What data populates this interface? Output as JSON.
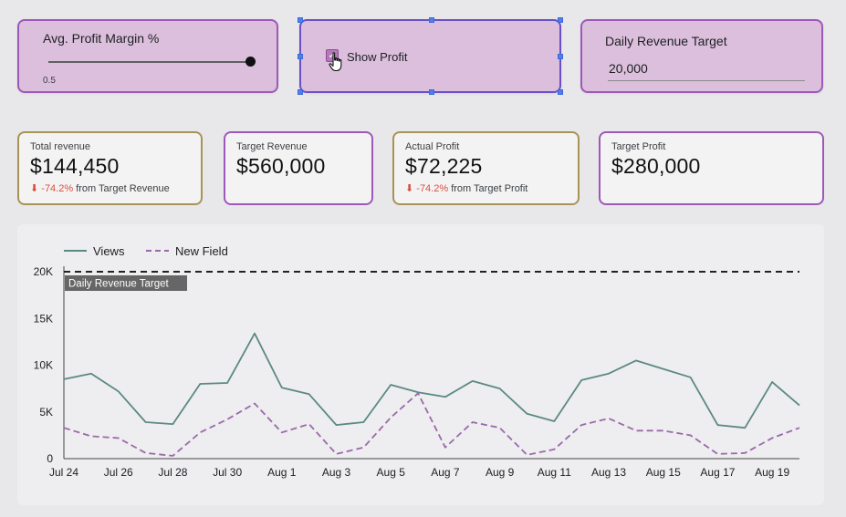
{
  "controls": {
    "slider": {
      "title": "Avg. Profit Margin %",
      "value": "0.5",
      "fraction": 0.5
    },
    "checkbox": {
      "label": "Show Profit",
      "checked": true
    },
    "target_input": {
      "title": "Daily Revenue Target",
      "value": "20,000"
    }
  },
  "kpis": {
    "total_revenue": {
      "label": "Total revenue",
      "value": "$144,450",
      "delta_arrow": "⬇",
      "delta_pct": "-74.2%",
      "delta_text": "from Target Revenue"
    },
    "target_revenue": {
      "label": "Target Revenue",
      "value": "$560,000"
    },
    "actual_profit": {
      "label": "Actual Profit",
      "value": "$72,225",
      "delta_arrow": "⬇",
      "delta_pct": "-74.2%",
      "delta_text": "from Target Profit"
    },
    "target_profit": {
      "label": "Target Profit",
      "value": "$280,000"
    }
  },
  "colors": {
    "views": "#5b8a80",
    "new_field": "#9a6aa8",
    "reference": "#222222",
    "ref_label_bg": "#666666",
    "axis": "#444444"
  },
  "chart_data": {
    "type": "line",
    "x": [
      "Jul 24",
      "Jul 25",
      "Jul 26",
      "Jul 27",
      "Jul 28",
      "Jul 29",
      "Jul 30",
      "Jul 31",
      "Aug 1",
      "Aug 2",
      "Aug 3",
      "Aug 4",
      "Aug 5",
      "Aug 6",
      "Aug 7",
      "Aug 8",
      "Aug 9",
      "Aug 10",
      "Aug 11",
      "Aug 12",
      "Aug 13",
      "Aug 14",
      "Aug 15",
      "Aug 16",
      "Aug 17",
      "Aug 18",
      "Aug 19",
      "Aug 20"
    ],
    "x_tick_labels": [
      "Jul 24",
      "Jul 26",
      "Jul 28",
      "Jul 30",
      "Aug 1",
      "Aug 3",
      "Aug 5",
      "Aug 7",
      "Aug 9",
      "Aug 11",
      "Aug 13",
      "Aug 15",
      "Aug 17",
      "Aug 19"
    ],
    "series": [
      {
        "name": "Views",
        "style": "solid",
        "values": [
          8500,
          9100,
          7200,
          3900,
          3700,
          8000,
          8100,
          13400,
          7600,
          6900,
          3600,
          3900,
          7900,
          7100,
          6600,
          8300,
          7500,
          4800,
          4000,
          8400,
          9100,
          10500,
          9600,
          8700,
          3600,
          3300,
          8200,
          5700
        ]
      },
      {
        "name": "New Field",
        "style": "dashed",
        "values": [
          3300,
          2400,
          2200,
          600,
          300,
          2800,
          4200,
          5900,
          2800,
          3700,
          500,
          1200,
          4400,
          7000,
          1200,
          3900,
          3300,
          400,
          1000,
          3600,
          4300,
          3000,
          3000,
          2500,
          500,
          600,
          2200,
          3300
        ]
      }
    ],
    "reference_line": {
      "value": 20000,
      "label": "Daily Revenue Target"
    },
    "y_ticks": [
      0,
      5000,
      10000,
      15000,
      20000
    ],
    "y_tick_labels": [
      "0",
      "5K",
      "10K",
      "15K",
      "20K"
    ],
    "ylim": [
      0,
      20000
    ],
    "legend": "top-left"
  }
}
